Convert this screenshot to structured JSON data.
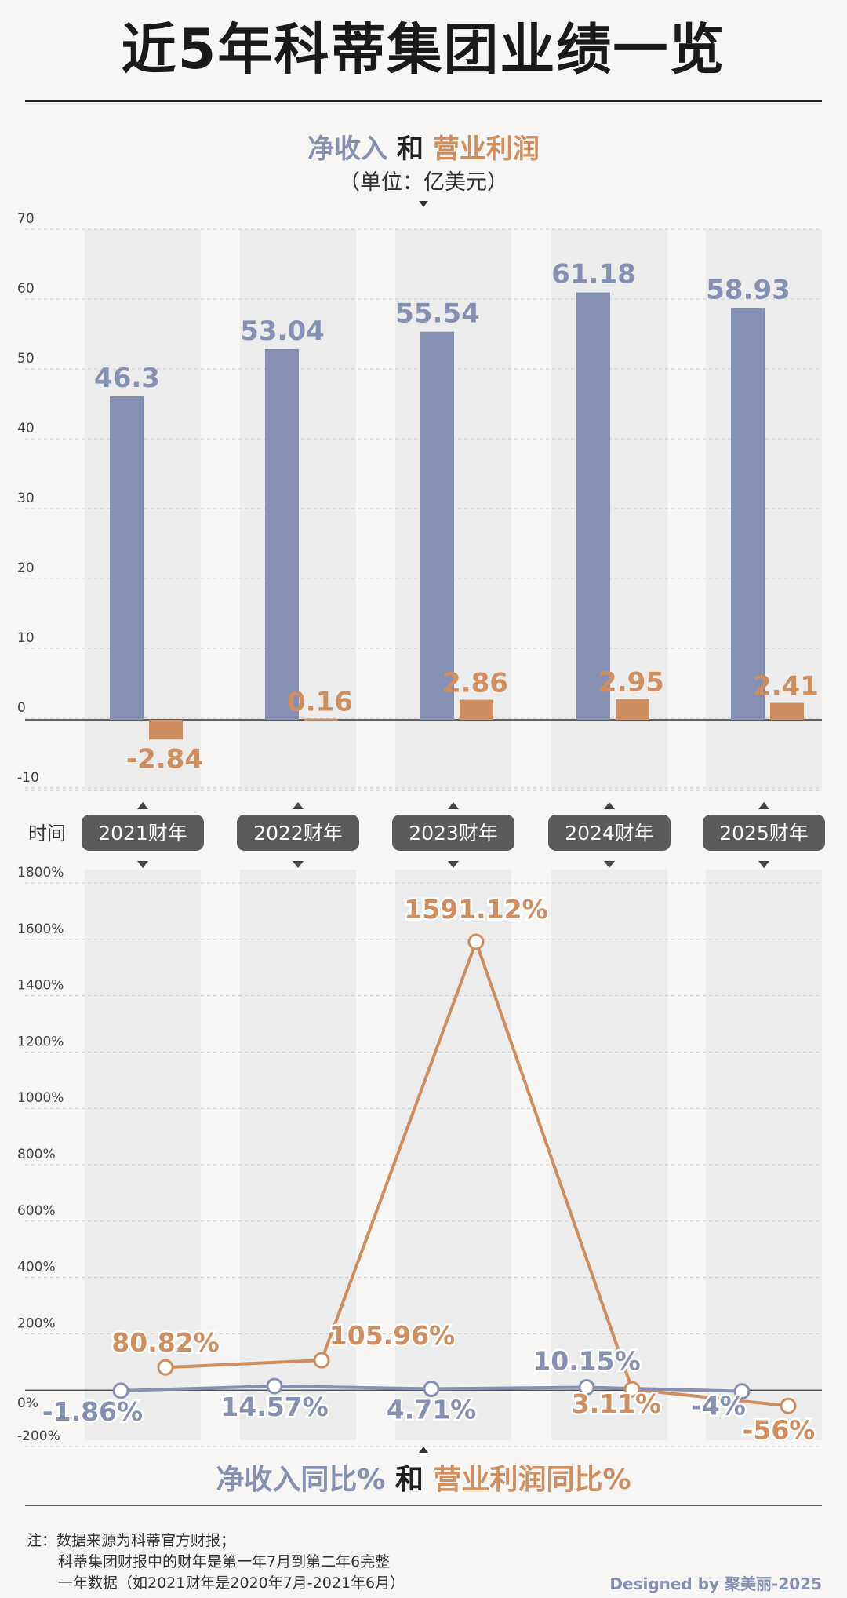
{
  "title": "近5年科蒂集团业绩一览",
  "top_chart_title": {
    "part1": "净收入",
    "and": "和",
    "part2": "营业利润"
  },
  "top_chart_unit": "（单位：亿美元）",
  "bottom_chart_title": {
    "part1": "净收入同比%",
    "and": "和",
    "part2": "营业利润同比%"
  },
  "time_label": "时间",
  "colors": {
    "revenue": "#8590b3",
    "profit": "#cf8e5f",
    "label_bg": "#5a5a5a",
    "band": "#ececec"
  },
  "chart_data": [
    {
      "type": "bar",
      "categories": [
        "2021财年",
        "2022财年",
        "2023财年",
        "2024财年",
        "2025财年"
      ],
      "series": [
        {
          "name": "净收入",
          "values": [
            46.3,
            53.04,
            55.54,
            61.18,
            58.93
          ],
          "labels": [
            "46.3",
            "53.04",
            "55.54",
            "61.18",
            "58.93"
          ]
        },
        {
          "name": "营业利润",
          "values": [
            -2.84,
            0.16,
            2.86,
            2.95,
            2.41
          ],
          "labels": [
            "-2.84",
            "0.16",
            "2.86",
            "2.95",
            "2.41"
          ]
        }
      ],
      "yticks": [
        "70",
        "60",
        "50",
        "40",
        "30",
        "20",
        "10",
        "0",
        "-10"
      ],
      "ylim": [
        -10,
        70
      ],
      "ylabel": "",
      "grid": true
    },
    {
      "type": "line",
      "categories": [
        "2021财年",
        "2022财年",
        "2023财年",
        "2024财年",
        "2025财年"
      ],
      "series": [
        {
          "name": "净收入同比%",
          "values": [
            -1.86,
            14.57,
            4.71,
            10.15,
            -4
          ],
          "labels": [
            "-1.86%",
            "14.57%",
            "4.71%",
            "10.15%",
            "-4%"
          ]
        },
        {
          "name": "营业利润同比%",
          "values": [
            80.82,
            105.96,
            1591.12,
            3.11,
            -56
          ],
          "labels": [
            "80.82%",
            "105.96%",
            "1591.12%",
            "3.11%",
            "-56%"
          ]
        }
      ],
      "yticks": [
        "1800%",
        "1600%",
        "1400%",
        "1200%",
        "1000%",
        "800%",
        "600%",
        "400%",
        "200%",
        "0%",
        "-200%"
      ],
      "ylim": [
        -200,
        1800
      ],
      "grid": true
    }
  ],
  "footer": {
    "line1": "注：数据来源为科蒂官方财报；",
    "line2": "科蒂集团财报中的财年是第一年7月到第二年6完整",
    "line3": "一年数据（如2021财年是2020年7月-2021年6月）"
  },
  "signature": "Designed by 聚美丽-2025"
}
